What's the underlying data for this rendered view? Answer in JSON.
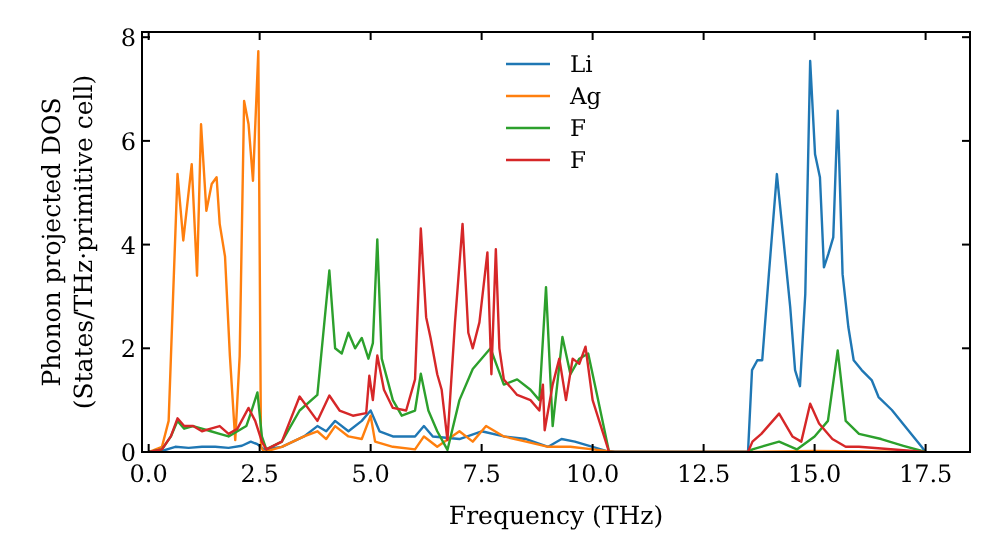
{
  "chart_data": {
    "type": "line",
    "xlabel": "Frequency (THz)",
    "ylabel": "Phonon projected DOS\n(States/THz·primitive cell)",
    "xlim": [
      -0.15,
      18.5
    ],
    "ylim": [
      0,
      8.1
    ],
    "xticks": [
      {
        "value": 0,
        "label": "0.0"
      },
      {
        "value": 2.5,
        "label": "2.5"
      },
      {
        "value": 5,
        "label": "5.0"
      },
      {
        "value": 7.5,
        "label": "7.5"
      },
      {
        "value": 10,
        "label": "10.0"
      },
      {
        "value": 12.5,
        "label": "12.5"
      },
      {
        "value": 15,
        "label": "15.0"
      },
      {
        "value": 17.5,
        "label": "17.5"
      }
    ],
    "yticks": [
      0,
      2,
      4,
      6,
      8
    ],
    "legend": "top",
    "grid": false,
    "marker": "none",
    "line_style": "solid",
    "series": [
      {
        "name": "Li",
        "color": "#1f77b4",
        "x": [
          0,
          0.3,
          0.6,
          0.9,
          1.2,
          1.5,
          1.8,
          2.1,
          2.3,
          2.45,
          2.6,
          3.0,
          3.5,
          3.8,
          4.0,
          4.2,
          4.5,
          4.8,
          5.0,
          5.2,
          5.5,
          6.0,
          6.2,
          6.4,
          7.0,
          7.5,
          8.0,
          8.5,
          9.0,
          9.3,
          9.6,
          10.0,
          10.3,
          10.5,
          13.5,
          13.59,
          13.71,
          13.82,
          13.97,
          14.15,
          14.3,
          14.45,
          14.56,
          14.67,
          14.79,
          14.9,
          15.01,
          15.12,
          15.21,
          15.31,
          15.42,
          15.52,
          15.63,
          15.76,
          15.88,
          16.06,
          16.29,
          16.44,
          16.74,
          17.04,
          17.41,
          17.5
        ],
        "values": [
          0,
          0.02,
          0.1,
          0.08,
          0.1,
          0.1,
          0.08,
          0.12,
          0.2,
          0.15,
          0.05,
          0.1,
          0.3,
          0.5,
          0.4,
          0.6,
          0.4,
          0.6,
          0.8,
          0.4,
          0.3,
          0.3,
          0.5,
          0.3,
          0.25,
          0.4,
          0.3,
          0.25,
          0.1,
          0.25,
          0.2,
          0.1,
          0.02,
          0,
          0,
          1.58,
          1.77,
          1.77,
          3.43,
          5.36,
          4.08,
          2.8,
          1.58,
          1.27,
          3.05,
          7.54,
          5.74,
          5.3,
          3.56,
          3.82,
          4.14,
          6.58,
          3.43,
          2.41,
          1.77,
          1.58,
          1.38,
          1.06,
          0.81,
          0.49,
          0.1,
          0
        ]
      },
      {
        "name": "Ag",
        "color": "#ff7f0e",
        "x": [
          0,
          0.3,
          0.45,
          0.55,
          0.65,
          0.78,
          0.97,
          1.09,
          1.18,
          1.3,
          1.42,
          1.53,
          1.6,
          1.72,
          1.83,
          1.95,
          2.05,
          2.15,
          2.25,
          2.35,
          2.47,
          2.53,
          2.6,
          3.0,
          3.5,
          3.8,
          4.0,
          4.2,
          4.5,
          4.8,
          5.0,
          5.1,
          5.5,
          6.0,
          6.2,
          6.5,
          7.0,
          7.3,
          7.6,
          8.0,
          8.5,
          9.0,
          9.5,
          10.0,
          10.5,
          13.5,
          15.0,
          17.5
        ],
        "values": [
          0,
          0.1,
          0.6,
          3.0,
          5.36,
          4.08,
          5.55,
          3.4,
          6.32,
          4.65,
          5.17,
          5.3,
          4.4,
          3.77,
          1.85,
          0.23,
          1.85,
          6.77,
          6.32,
          5.23,
          7.73,
          0.1,
          0,
          0.1,
          0.3,
          0.4,
          0.25,
          0.5,
          0.3,
          0.25,
          0.7,
          0.2,
          0.1,
          0.05,
          0.3,
          0.1,
          0.4,
          0.2,
          0.5,
          0.3,
          0.2,
          0.1,
          0.1,
          0.05,
          0,
          0,
          0.02,
          0
        ]
      },
      {
        "name": "F",
        "color": "#2ca02c",
        "x": [
          0,
          0.3,
          0.5,
          0.65,
          0.8,
          1.0,
          1.2,
          1.4,
          1.6,
          1.8,
          2.0,
          2.2,
          2.3,
          2.45,
          2.55,
          2.65,
          3.0,
          3.4,
          3.8,
          4.07,
          4.2,
          4.35,
          4.5,
          4.65,
          4.8,
          4.95,
          5.05,
          5.15,
          5.25,
          5.5,
          5.7,
          6.0,
          6.13,
          6.3,
          6.5,
          6.73,
          7.0,
          7.3,
          7.7,
          8.0,
          8.3,
          8.6,
          8.8,
          8.95,
          9.1,
          9.32,
          9.5,
          9.7,
          9.9,
          10.1,
          10.37,
          13.5,
          13.6,
          14.2,
          14.6,
          15.0,
          15.3,
          15.52,
          15.7,
          16.0,
          16.5,
          17.0,
          17.5
        ],
        "values": [
          0,
          0.05,
          0.3,
          0.6,
          0.45,
          0.5,
          0.45,
          0.4,
          0.35,
          0.3,
          0.4,
          0.5,
          0.75,
          1.15,
          0.3,
          0.05,
          0.2,
          0.8,
          1.1,
          3.5,
          2.0,
          1.9,
          2.3,
          2.0,
          2.2,
          1.8,
          2.1,
          4.1,
          1.8,
          1.0,
          0.7,
          0.8,
          1.51,
          0.8,
          0.4,
          0.04,
          1.0,
          1.6,
          2.0,
          1.3,
          1.4,
          1.2,
          1.0,
          3.18,
          0.5,
          2.22,
          1.5,
          1.8,
          1.9,
          1.1,
          0,
          0,
          0.05,
          0.2,
          0.05,
          0.3,
          0.6,
          1.96,
          0.6,
          0.35,
          0.25,
          0.12,
          0
        ]
      },
      {
        "name": "F",
        "color": "#d62728",
        "x": [
          0,
          0.3,
          0.5,
          0.65,
          0.8,
          1.0,
          1.2,
          1.4,
          1.6,
          1.8,
          2.0,
          2.25,
          2.4,
          2.55,
          2.65,
          3.0,
          3.4,
          3.8,
          4.07,
          4.3,
          4.6,
          4.9,
          4.97,
          5.05,
          5.15,
          5.3,
          5.5,
          5.8,
          6.0,
          6.13,
          6.25,
          6.35,
          6.5,
          6.6,
          6.73,
          6.9,
          7.07,
          7.2,
          7.3,
          7.45,
          7.63,
          7.72,
          7.82,
          7.9,
          8.0,
          8.3,
          8.6,
          8.8,
          8.88,
          8.92,
          9.1,
          9.25,
          9.4,
          9.55,
          9.7,
          9.84,
          10.0,
          10.37,
          13.5,
          13.6,
          13.8,
          14.2,
          14.5,
          14.7,
          14.9,
          15.1,
          15.4,
          15.7,
          16.0,
          17.5
        ],
        "values": [
          0,
          0.05,
          0.3,
          0.65,
          0.5,
          0.5,
          0.4,
          0.45,
          0.5,
          0.35,
          0.45,
          0.85,
          0.6,
          0.2,
          0.05,
          0.2,
          1.07,
          0.6,
          1.09,
          0.8,
          0.7,
          0.75,
          1.47,
          1.0,
          1.86,
          1.2,
          0.85,
          0.8,
          1.4,
          4.31,
          2.6,
          2.2,
          1.5,
          1.2,
          0.23,
          2.5,
          4.4,
          2.3,
          2.0,
          2.5,
          3.85,
          1.5,
          3.91,
          2.0,
          1.4,
          1.1,
          1.0,
          0.8,
          1.3,
          0.42,
          1.3,
          1.8,
          1.0,
          1.8,
          1.7,
          2.03,
          1.0,
          0,
          0,
          0.2,
          0.35,
          0.74,
          0.3,
          0.2,
          0.93,
          0.55,
          0.25,
          0.1,
          0.1,
          0
        ]
      }
    ]
  }
}
